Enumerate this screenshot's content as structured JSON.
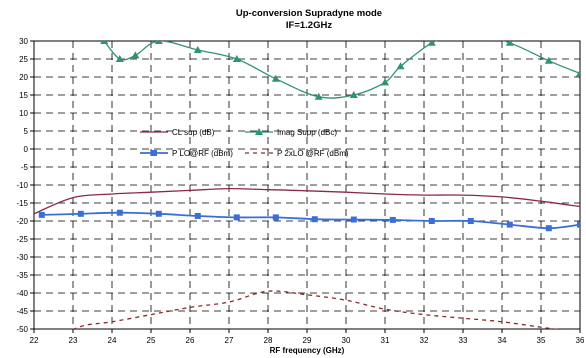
{
  "chart_data": {
    "type": "line",
    "title": "Up-conversion Supradyne mode",
    "subtitle": "IF=1.2GHz",
    "xlabel": "RF frequency (GHz)",
    "ylabel": "",
    "xlim": [
      22,
      36
    ],
    "ylim": [
      -50,
      30
    ],
    "xticks": [
      "22",
      "23",
      "24",
      "25",
      "26",
      "27",
      "28",
      "29",
      "30",
      "31",
      "32",
      "33",
      "34",
      "35",
      "36"
    ],
    "yticks": [
      "30",
      "25",
      "20",
      "15",
      "10",
      "5",
      "0",
      "-5",
      "-10",
      "-15",
      "-20",
      "-25",
      "-30",
      "-35",
      "-40",
      "-45",
      "-50"
    ],
    "grid": true,
    "legend_position": "center-left, inside plot",
    "series": [
      {
        "name": "CL sup (dB)",
        "color": "#8a2a4a",
        "line": "solid",
        "marker": "none",
        "points": [
          [
            22,
            -18
          ],
          [
            23,
            -13.5
          ],
          [
            24,
            -12.5
          ],
          [
            25,
            -12
          ],
          [
            26,
            -11.5
          ],
          [
            27,
            -11
          ],
          [
            28,
            -11.3
          ],
          [
            29,
            -11.6
          ],
          [
            30,
            -12
          ],
          [
            31,
            -12.5
          ],
          [
            32,
            -12.8
          ],
          [
            33,
            -12.8
          ],
          [
            34,
            -13.3
          ],
          [
            35,
            -14.5
          ],
          [
            36,
            -16
          ]
        ]
      },
      {
        "name": "Imag Supp (dBc)",
        "color": "#2f9470",
        "line": "solid",
        "marker": "triangle",
        "points": [
          [
            23.8,
            30
          ],
          [
            24.2,
            25
          ],
          [
            24.6,
            26
          ],
          [
            25.2,
            30
          ],
          [
            26.2,
            27.5
          ],
          [
            27.2,
            25
          ],
          [
            28.2,
            19.5
          ],
          [
            29.3,
            14.5
          ],
          [
            30.2,
            15
          ],
          [
            31,
            18.5
          ],
          [
            31.4,
            23
          ],
          [
            32.2,
            29.5
          ],
          [
            32.6,
            30.5
          ]
        ]
      },
      {
        "name": "Imag Supp (dBc)",
        "color": "#2f9470",
        "line": "solid",
        "marker": "triangle",
        "points": [
          [
            33.3,
            32
          ],
          [
            34.2,
            29.5
          ],
          [
            35.2,
            24.5
          ],
          [
            36,
            21
          ]
        ]
      },
      {
        "name": "P LO@RF (dBm)",
        "color": "#3a6fd8",
        "line": "solid",
        "marker": "square",
        "points": [
          [
            22.2,
            -18.3
          ],
          [
            23.2,
            -18
          ],
          [
            24.2,
            -17.7
          ],
          [
            25.2,
            -18
          ],
          [
            26.2,
            -18.6
          ],
          [
            27.2,
            -19
          ],
          [
            28.2,
            -19
          ],
          [
            29.2,
            -19.5
          ],
          [
            30.2,
            -19.6
          ],
          [
            31.2,
            -19.7
          ],
          [
            32.2,
            -20
          ],
          [
            33.2,
            -20
          ],
          [
            34.2,
            -21
          ],
          [
            35.2,
            -22
          ],
          [
            36,
            -21
          ]
        ]
      },
      {
        "name": "P 2xLO @RF (dBm)",
        "color": "#8a2a2a",
        "line": "dashed",
        "marker": "none",
        "points": [
          [
            22.8,
            -51
          ],
          [
            23.3,
            -49
          ],
          [
            24,
            -48
          ],
          [
            25,
            -46
          ],
          [
            26,
            -44
          ],
          [
            27,
            -42.5
          ],
          [
            28,
            -39.5
          ],
          [
            29,
            -40.5
          ],
          [
            30,
            -42
          ],
          [
            31,
            -44.5
          ],
          [
            32,
            -46
          ],
          [
            33,
            -47
          ],
          [
            34,
            -48
          ],
          [
            35,
            -49.5
          ],
          [
            36,
            -51
          ]
        ]
      }
    ]
  }
}
